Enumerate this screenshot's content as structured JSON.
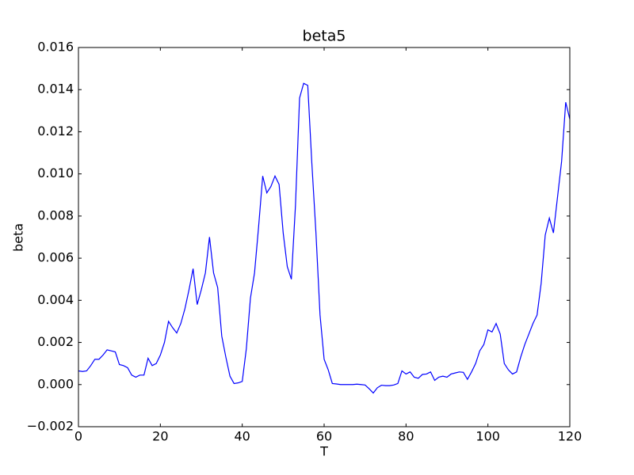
{
  "chart_data": {
    "type": "line",
    "title": "beta5",
    "xlabel": "T",
    "ylabel": "beta",
    "x": [
      0,
      1,
      2,
      3,
      4,
      5,
      6,
      7,
      8,
      9,
      10,
      11,
      12,
      13,
      14,
      15,
      16,
      17,
      18,
      19,
      20,
      21,
      22,
      23,
      24,
      25,
      26,
      27,
      28,
      29,
      30,
      31,
      32,
      33,
      34,
      35,
      36,
      37,
      38,
      39,
      40,
      41,
      42,
      43,
      44,
      45,
      46,
      47,
      48,
      49,
      50,
      51,
      52,
      53,
      54,
      55,
      56,
      57,
      58,
      59,
      60,
      61,
      62,
      63,
      64,
      65,
      66,
      67,
      68,
      69,
      70,
      71,
      72,
      73,
      74,
      75,
      76,
      77,
      78,
      79,
      80,
      81,
      82,
      83,
      84,
      85,
      86,
      87,
      88,
      89,
      90,
      91,
      92,
      93,
      94,
      95,
      96,
      97,
      98,
      99,
      100,
      101,
      102,
      103,
      104,
      105,
      106,
      107,
      108,
      109,
      110,
      111,
      112,
      113,
      114,
      115,
      116,
      117,
      118,
      119,
      120
    ],
    "series": [
      {
        "name": "beta5",
        "color": "#0000ff",
        "values": [
          0.00065,
          0.00062,
          0.00065,
          0.0009,
          0.0012,
          0.0012,
          0.0014,
          0.00165,
          0.0016,
          0.00155,
          0.00095,
          0.0009,
          0.0008,
          0.00045,
          0.00035,
          0.00045,
          0.00045,
          0.00125,
          0.0009,
          0.001,
          0.0014,
          0.002,
          0.003,
          0.0027,
          0.00245,
          0.0029,
          0.0036,
          0.0045,
          0.0055,
          0.0038,
          0.0045,
          0.0053,
          0.007,
          0.0053,
          0.0046,
          0.0023,
          0.0013,
          0.0004,
          5e-05,
          8e-05,
          0.00015,
          0.0017,
          0.0041,
          0.0053,
          0.0075,
          0.0099,
          0.0091,
          0.0094,
          0.0099,
          0.0095,
          0.0072,
          0.0056,
          0.005,
          0.0085,
          0.0136,
          0.0143,
          0.0142,
          0.0105,
          0.0072,
          0.0033,
          0.0012,
          0.0007,
          5e-05,
          3e-05,
          0.0,
          0.0,
          0.0,
          0.0,
          2e-05,
          0.0,
          -2e-05,
          -0.0002,
          -0.0004,
          -0.00015,
          -3e-05,
          -5e-05,
          -5e-05,
          -2e-05,
          5e-05,
          0.00065,
          0.0005,
          0.0006,
          0.00035,
          0.0003,
          0.00048,
          0.0005,
          0.0006,
          0.0002,
          0.00035,
          0.0004,
          0.00035,
          0.0005,
          0.00055,
          0.0006,
          0.00058,
          0.00025,
          0.0006,
          0.001,
          0.0016,
          0.0019,
          0.0026,
          0.0025,
          0.0029,
          0.0024,
          0.001,
          0.0007,
          0.0005,
          0.0006,
          0.0013,
          0.0019,
          0.0024,
          0.0029,
          0.0033,
          0.0048,
          0.0071,
          0.0079,
          0.0072,
          0.0089,
          0.0106,
          0.0134,
          0.0126
        ]
      }
    ],
    "xlim": [
      0,
      120
    ],
    "xticks": [
      0,
      20,
      40,
      60,
      80,
      100,
      120
    ],
    "ylim": [
      -0.002,
      0.016
    ],
    "yticks": [
      {
        "value": -0.002,
        "label": "−0.002"
      },
      {
        "value": 0,
        "label": "0.000"
      },
      {
        "value": 0.002,
        "label": "0.002"
      },
      {
        "value": 0.004,
        "label": "0.004"
      },
      {
        "value": 0.006,
        "label": "0.006"
      },
      {
        "value": 0.008,
        "label": "0.008"
      },
      {
        "value": 0.01,
        "label": "0.010"
      },
      {
        "value": 0.012,
        "label": "0.012"
      },
      {
        "value": 0.014,
        "label": "0.014"
      },
      {
        "value": 0.016,
        "label": "0.016"
      }
    ]
  }
}
